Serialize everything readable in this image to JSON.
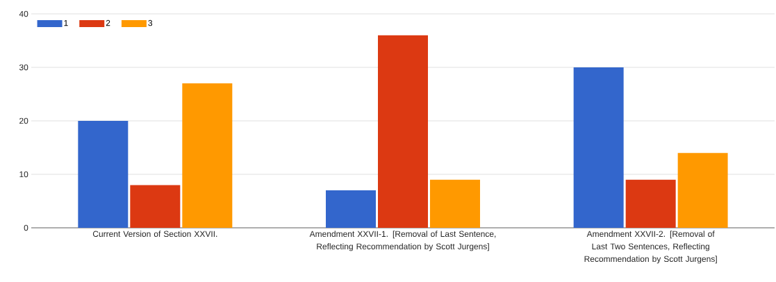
{
  "chart_data": {
    "type": "bar",
    "categories": [
      "Current Version of Section XXVII.",
      "Amendment XXVII-1. [Removal of Last Sentence, Reflecting Recommendation by Scott Jurgens]",
      "Amendment XXVII-2. [Removal of Last Two Sentences, Reflecting Recommendation by Scott Jurgens]"
    ],
    "series": [
      {
        "name": "1",
        "color": "#3366cc",
        "values": [
          20,
          7,
          30
        ]
      },
      {
        "name": "2",
        "color": "#dc3912",
        "values": [
          8,
          36,
          9
        ]
      },
      {
        "name": "3",
        "color": "#ff9900",
        "values": [
          27,
          9,
          14
        ]
      }
    ],
    "ylim": [
      0,
      40
    ],
    "yticks": [
      0,
      10,
      20,
      30,
      40
    ],
    "grid": "y",
    "legend": "top left"
  }
}
